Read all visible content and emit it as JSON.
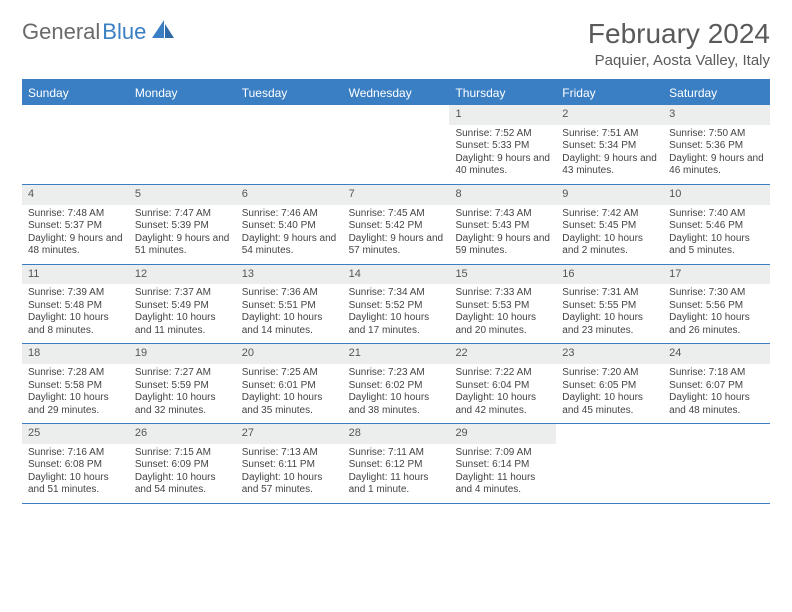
{
  "logo": {
    "text1": "General",
    "text2": "Blue"
  },
  "title": "February 2024",
  "location": "Paquier, Aosta Valley, Italy",
  "colors": {
    "accent": "#3a7fc4",
    "header_text": "#ffffff",
    "daynum_bg": "#eceeee",
    "text": "#444444",
    "logo_gray": "#6a6a6a"
  },
  "day_headers": [
    "Sunday",
    "Monday",
    "Tuesday",
    "Wednesday",
    "Thursday",
    "Friday",
    "Saturday"
  ],
  "weeks": [
    [
      {
        "n": "",
        "empty": true
      },
      {
        "n": "",
        "empty": true
      },
      {
        "n": "",
        "empty": true
      },
      {
        "n": "",
        "empty": true
      },
      {
        "n": "1",
        "sr": "7:52 AM",
        "ss": "5:33 PM",
        "dl": "9 hours and 40 minutes."
      },
      {
        "n": "2",
        "sr": "7:51 AM",
        "ss": "5:34 PM",
        "dl": "9 hours and 43 minutes."
      },
      {
        "n": "3",
        "sr": "7:50 AM",
        "ss": "5:36 PM",
        "dl": "9 hours and 46 minutes."
      }
    ],
    [
      {
        "n": "4",
        "sr": "7:48 AM",
        "ss": "5:37 PM",
        "dl": "9 hours and 48 minutes."
      },
      {
        "n": "5",
        "sr": "7:47 AM",
        "ss": "5:39 PM",
        "dl": "9 hours and 51 minutes."
      },
      {
        "n": "6",
        "sr": "7:46 AM",
        "ss": "5:40 PM",
        "dl": "9 hours and 54 minutes."
      },
      {
        "n": "7",
        "sr": "7:45 AM",
        "ss": "5:42 PM",
        "dl": "9 hours and 57 minutes."
      },
      {
        "n": "8",
        "sr": "7:43 AM",
        "ss": "5:43 PM",
        "dl": "9 hours and 59 minutes."
      },
      {
        "n": "9",
        "sr": "7:42 AM",
        "ss": "5:45 PM",
        "dl": "10 hours and 2 minutes."
      },
      {
        "n": "10",
        "sr": "7:40 AM",
        "ss": "5:46 PM",
        "dl": "10 hours and 5 minutes."
      }
    ],
    [
      {
        "n": "11",
        "sr": "7:39 AM",
        "ss": "5:48 PM",
        "dl": "10 hours and 8 minutes."
      },
      {
        "n": "12",
        "sr": "7:37 AM",
        "ss": "5:49 PM",
        "dl": "10 hours and 11 minutes."
      },
      {
        "n": "13",
        "sr": "7:36 AM",
        "ss": "5:51 PM",
        "dl": "10 hours and 14 minutes."
      },
      {
        "n": "14",
        "sr": "7:34 AM",
        "ss": "5:52 PM",
        "dl": "10 hours and 17 minutes."
      },
      {
        "n": "15",
        "sr": "7:33 AM",
        "ss": "5:53 PM",
        "dl": "10 hours and 20 minutes."
      },
      {
        "n": "16",
        "sr": "7:31 AM",
        "ss": "5:55 PM",
        "dl": "10 hours and 23 minutes."
      },
      {
        "n": "17",
        "sr": "7:30 AM",
        "ss": "5:56 PM",
        "dl": "10 hours and 26 minutes."
      }
    ],
    [
      {
        "n": "18",
        "sr": "7:28 AM",
        "ss": "5:58 PM",
        "dl": "10 hours and 29 minutes."
      },
      {
        "n": "19",
        "sr": "7:27 AM",
        "ss": "5:59 PM",
        "dl": "10 hours and 32 minutes."
      },
      {
        "n": "20",
        "sr": "7:25 AM",
        "ss": "6:01 PM",
        "dl": "10 hours and 35 minutes."
      },
      {
        "n": "21",
        "sr": "7:23 AM",
        "ss": "6:02 PM",
        "dl": "10 hours and 38 minutes."
      },
      {
        "n": "22",
        "sr": "7:22 AM",
        "ss": "6:04 PM",
        "dl": "10 hours and 42 minutes."
      },
      {
        "n": "23",
        "sr": "7:20 AM",
        "ss": "6:05 PM",
        "dl": "10 hours and 45 minutes."
      },
      {
        "n": "24",
        "sr": "7:18 AM",
        "ss": "6:07 PM",
        "dl": "10 hours and 48 minutes."
      }
    ],
    [
      {
        "n": "25",
        "sr": "7:16 AM",
        "ss": "6:08 PM",
        "dl": "10 hours and 51 minutes."
      },
      {
        "n": "26",
        "sr": "7:15 AM",
        "ss": "6:09 PM",
        "dl": "10 hours and 54 minutes."
      },
      {
        "n": "27",
        "sr": "7:13 AM",
        "ss": "6:11 PM",
        "dl": "10 hours and 57 minutes."
      },
      {
        "n": "28",
        "sr": "7:11 AM",
        "ss": "6:12 PM",
        "dl": "11 hours and 1 minute."
      },
      {
        "n": "29",
        "sr": "7:09 AM",
        "ss": "6:14 PM",
        "dl": "11 hours and 4 minutes."
      },
      {
        "n": "",
        "empty": true
      },
      {
        "n": "",
        "empty": true
      }
    ]
  ],
  "labels": {
    "sunrise": "Sunrise:",
    "sunset": "Sunset:",
    "daylight": "Daylight:"
  }
}
